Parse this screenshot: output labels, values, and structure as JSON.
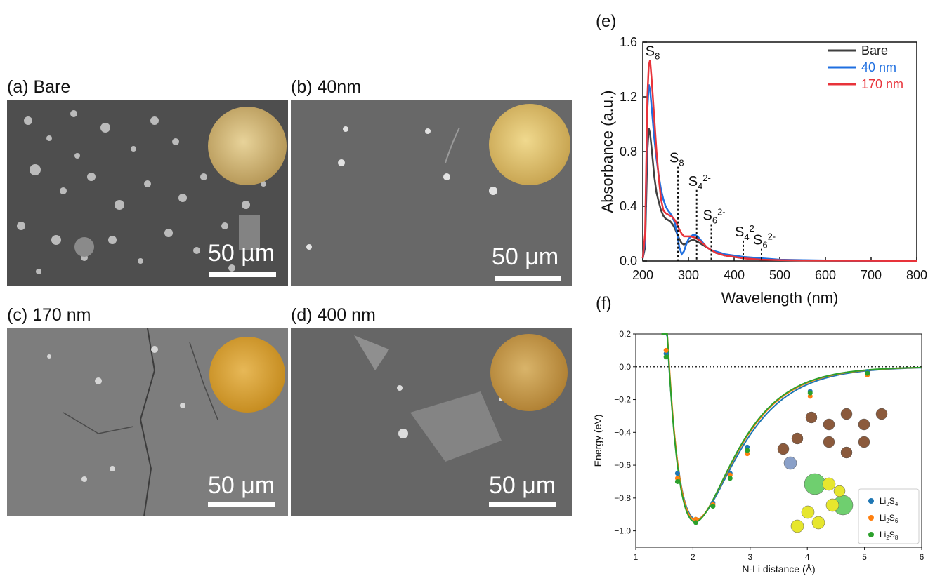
{
  "panels": {
    "a": {
      "label": "(a) Bare",
      "scale": "50 µm"
    },
    "b": {
      "label": "(b) 40nm",
      "scale": "50 μm"
    },
    "c": {
      "label": "(c) 170 nm",
      "scale": "50 μm"
    },
    "d": {
      "label": "(d) 400 nm",
      "scale": "50 μm"
    }
  },
  "colors": {
    "bare": "#404040",
    "nm40": "#1f6fe0",
    "nm170": "#e8333a",
    "li2s4": "#1f77b4",
    "li2s6": "#ff7f0e",
    "li2s8": "#2ca02c"
  },
  "chart_data": [
    {
      "panel_label": "(e)",
      "type": "line",
      "xlabel": "Wavelength (nm)",
      "ylabel": "Absorbance (a.u.)",
      "xlim": [
        200,
        800
      ],
      "ylim": [
        0,
        1.6
      ],
      "xticks": [
        "200",
        "300",
        "400",
        "500",
        "600",
        "700",
        "800"
      ],
      "yticks": [
        "0.0",
        "0.4",
        "0.8",
        "1.2",
        "1.6"
      ],
      "legend": "top-right",
      "series": [
        {
          "name": "Bare",
          "x": [
            200,
            205,
            210,
            213,
            216,
            220,
            225,
            230,
            235,
            240,
            245,
            250,
            255,
            260,
            265,
            270,
            275,
            280,
            285,
            290,
            295,
            300,
            305,
            310,
            315,
            320,
            325,
            330,
            335,
            340,
            350,
            360,
            370,
            380,
            400,
            420,
            440,
            460,
            480,
            500,
            550,
            600,
            700,
            800
          ],
          "y": [
            0.02,
            0.1,
            0.8,
            0.97,
            0.93,
            0.8,
            0.62,
            0.5,
            0.43,
            0.37,
            0.33,
            0.31,
            0.3,
            0.29,
            0.27,
            0.24,
            0.2,
            0.16,
            0.13,
            0.12,
            0.13,
            0.14,
            0.15,
            0.155,
            0.15,
            0.14,
            0.13,
            0.12,
            0.11,
            0.1,
            0.08,
            0.06,
            0.05,
            0.04,
            0.03,
            0.02,
            0.015,
            0.01,
            0.008,
            0.006,
            0.004,
            0.003,
            0.002,
            0.001
          ]
        },
        {
          "name": "40 nm",
          "x": [
            200,
            205,
            210,
            213,
            216,
            220,
            225,
            230,
            235,
            240,
            245,
            250,
            255,
            260,
            265,
            270,
            275,
            280,
            285,
            290,
            295,
            300,
            305,
            310,
            315,
            320,
            325,
            330,
            335,
            340,
            350,
            360,
            370,
            380,
            400,
            420,
            440,
            460,
            480,
            500,
            550,
            600,
            700,
            800
          ],
          "y": [
            0.02,
            0.15,
            1.1,
            1.29,
            1.25,
            1.1,
            0.9,
            0.75,
            0.62,
            0.52,
            0.45,
            0.4,
            0.37,
            0.35,
            0.32,
            0.28,
            0.2,
            0.1,
            0.05,
            0.07,
            0.12,
            0.16,
            0.18,
            0.19,
            0.19,
            0.18,
            0.16,
            0.14,
            0.12,
            0.1,
            0.08,
            0.07,
            0.06,
            0.05,
            0.04,
            0.03,
            0.025,
            0.02,
            0.015,
            0.01,
            0.006,
            0.004,
            0.002,
            0.001
          ]
        },
        {
          "name": "170 nm",
          "x": [
            200,
            205,
            210,
            213,
            216,
            220,
            225,
            230,
            235,
            240,
            245,
            250,
            255,
            260,
            265,
            270,
            275,
            280,
            285,
            290,
            295,
            300,
            305,
            310,
            315,
            320,
            325,
            330,
            335,
            340,
            350,
            360,
            370,
            380,
            400,
            420,
            440,
            460,
            480,
            500,
            550,
            600,
            700,
            800
          ],
          "y": [
            0.02,
            0.2,
            1.2,
            1.43,
            1.47,
            1.3,
            1.05,
            0.8,
            0.6,
            0.45,
            0.37,
            0.35,
            0.34,
            0.33,
            0.32,
            0.3,
            0.27,
            0.23,
            0.2,
            0.18,
            0.18,
            0.18,
            0.18,
            0.175,
            0.17,
            0.16,
            0.15,
            0.13,
            0.12,
            0.1,
            0.08,
            0.06,
            0.05,
            0.04,
            0.03,
            0.02,
            0.015,
            0.01,
            0.008,
            0.006,
            0.004,
            0.003,
            0.002,
            0.001
          ]
        }
      ],
      "annotations": [
        {
          "base": "S",
          "sub": "8",
          "sup": "",
          "x": 215,
          "y": 1.5,
          "marker": false
        },
        {
          "base": "S",
          "sub": "8",
          "sup": "",
          "x": 277,
          "y": 0.72,
          "marker": true
        },
        {
          "base": "S",
          "sub": "4",
          "sup": "2-",
          "x": 318,
          "y": 0.55,
          "marker": true
        },
        {
          "base": "S",
          "sub": "6",
          "sup": "2-",
          "x": 350,
          "y": 0.3,
          "marker": true
        },
        {
          "base": "S",
          "sub": "4",
          "sup": "2-",
          "x": 420,
          "y": 0.18,
          "marker": true
        },
        {
          "base": "S",
          "sub": "6",
          "sup": "2-",
          "x": 460,
          "y": 0.12,
          "marker": true
        }
      ]
    },
    {
      "panel_label": "(f)",
      "type": "scatter",
      "xlabel": "N-Li distance (Å)",
      "ylabel": "Energy (eV)",
      "xlim": [
        1,
        6
      ],
      "ylim": [
        -1.1,
        0.2
      ],
      "xticks": [
        "1",
        "2",
        "3",
        "4",
        "5",
        "6"
      ],
      "yticks": [
        "0.2",
        "0.0",
        "−0.2",
        "−0.4",
        "−0.6",
        "−0.8",
        "−1.0"
      ],
      "legend": "bottom-right",
      "series": [
        {
          "name": "Li2S4",
          "x": [
            1.53,
            1.73,
            2.05,
            2.35,
            2.65,
            2.95,
            4.05,
            5.05
          ],
          "y": [
            0.08,
            -0.65,
            -0.93,
            -0.83,
            -0.65,
            -0.49,
            -0.15,
            -0.03
          ]
        },
        {
          "name": "Li2S6",
          "x": [
            1.53,
            1.73,
            2.05,
            2.35,
            2.65,
            2.95,
            4.05,
            5.05
          ],
          "y": [
            0.1,
            -0.68,
            -0.93,
            -0.84,
            -0.66,
            -0.53,
            -0.18,
            -0.05
          ]
        },
        {
          "name": "Li2S8",
          "x": [
            1.53,
            1.73,
            2.05,
            2.35,
            2.65,
            2.95,
            4.05,
            5.05
          ],
          "y": [
            0.06,
            -0.7,
            -0.95,
            -0.85,
            -0.68,
            -0.51,
            -0.16,
            -0.04
          ]
        }
      ],
      "legend_entries": [
        {
          "base1": "Li",
          "sub1": "2",
          "base2": "S",
          "sub2": "4"
        },
        {
          "base1": "Li",
          "sub1": "2",
          "base2": "S",
          "sub2": "6"
        },
        {
          "base1": "Li",
          "sub1": "2",
          "base2": "S",
          "sub2": "8"
        }
      ]
    }
  ]
}
